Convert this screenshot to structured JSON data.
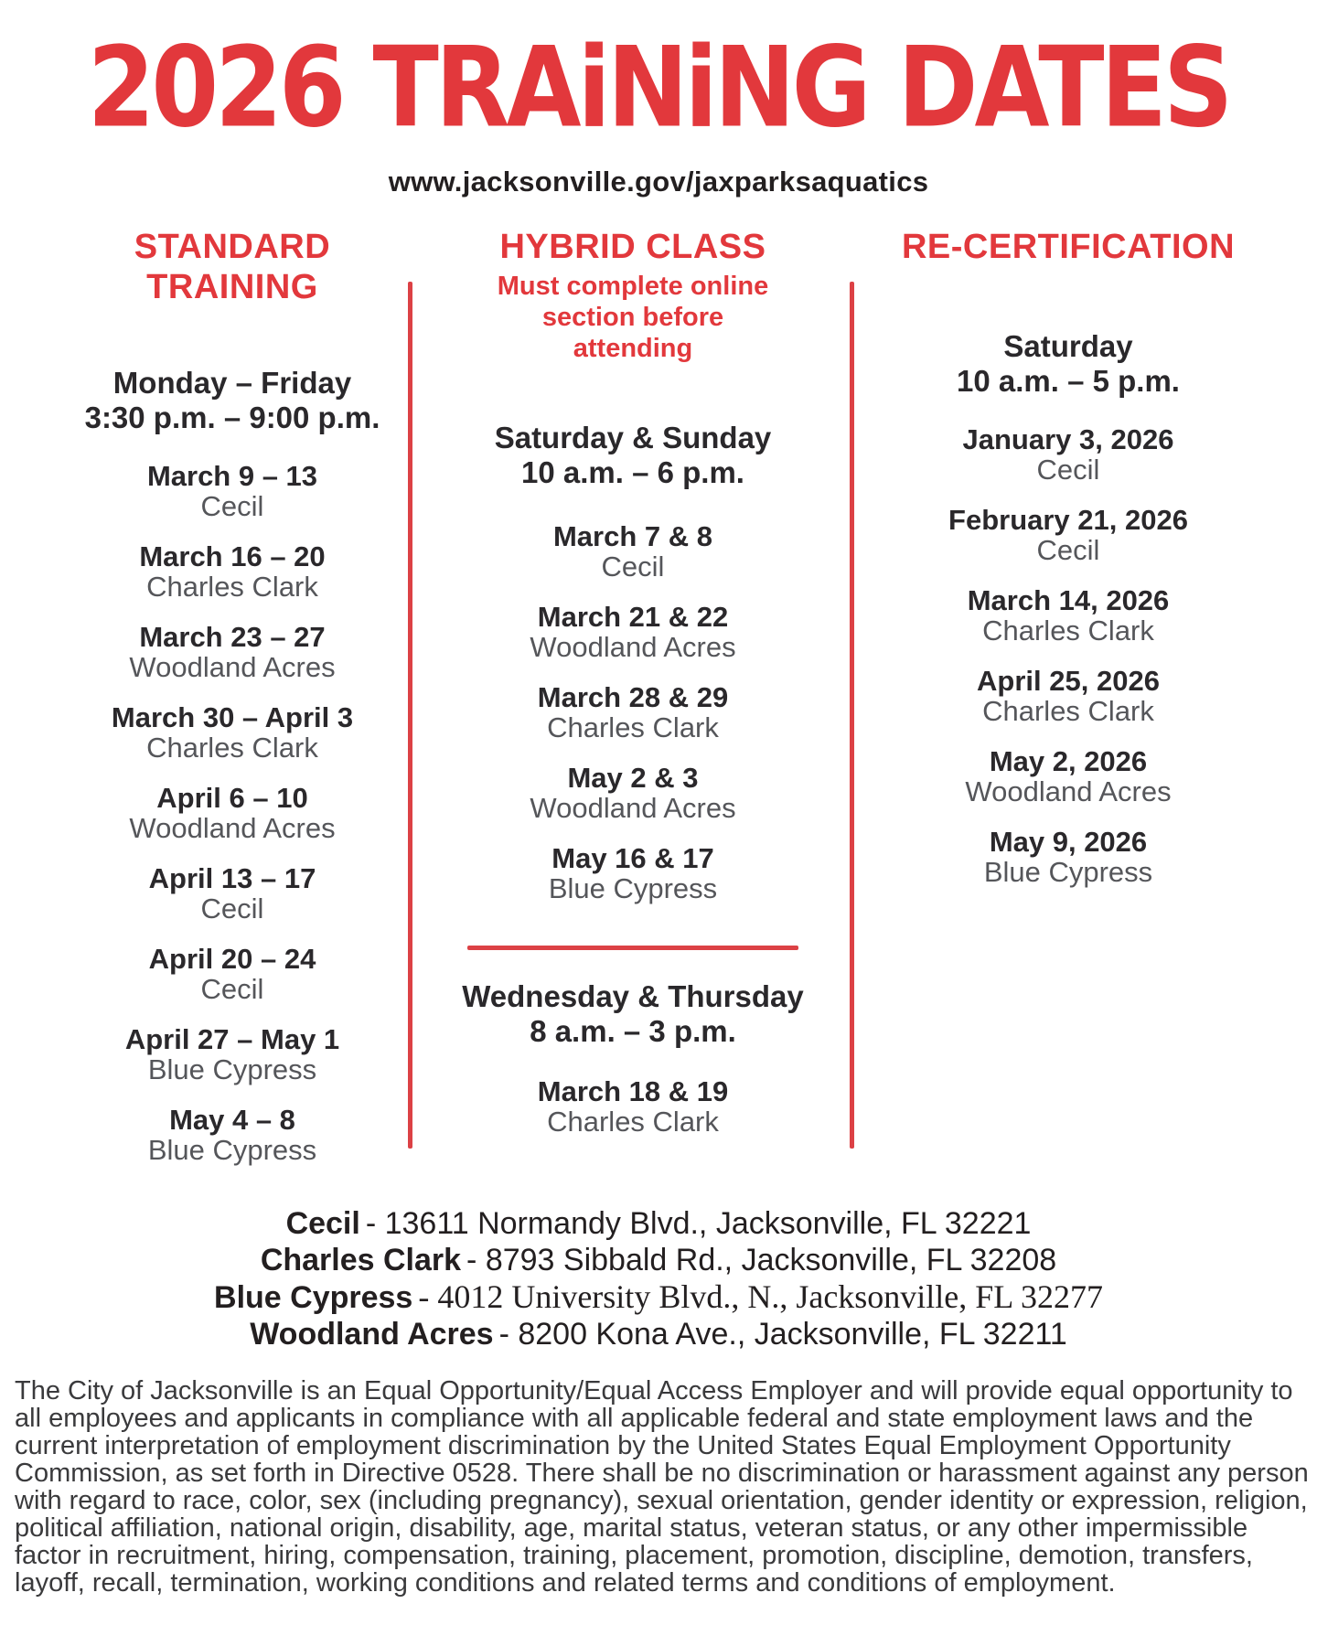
{
  "page": {
    "title": "2026 TRAiNiNG DATES",
    "url": "www.jacksonville.gov/jaxparksaquatics"
  },
  "accent_color": "#e2383c",
  "columns": {
    "standard": {
      "header": "STANDARD TRAINING",
      "schedule_days": "Monday – Friday",
      "schedule_time": "3:30 p.m. – 9:00 p.m.",
      "entries": [
        {
          "date": "March 9 – 13",
          "location": "Cecil"
        },
        {
          "date": "March 16 – 20",
          "location": "Charles Clark"
        },
        {
          "date": "March 23 – 27",
          "location": "Woodland Acres"
        },
        {
          "date": "March 30 – April 3",
          "location": "Charles Clark"
        },
        {
          "date": "April 6 – 10",
          "location": "Woodland Acres"
        },
        {
          "date": "April 13 – 17",
          "location": "Cecil"
        },
        {
          "date": "April 20 – 24",
          "location": "Cecil"
        },
        {
          "date": "April 27 – May 1",
          "location": "Blue Cypress"
        },
        {
          "date": "May 4 – 8",
          "location": "Blue Cypress"
        }
      ]
    },
    "hybrid": {
      "header": "HYBRID CLASS",
      "note": "Must complete online section before attending",
      "schedule1_days": "Saturday & Sunday",
      "schedule1_time": "10 a.m. – 6 p.m.",
      "entries1": [
        {
          "date": "March 7 & 8",
          "location": "Cecil"
        },
        {
          "date": "March 21 & 22",
          "location": "Woodland Acres"
        },
        {
          "date": "March 28 & 29",
          "location": "Charles Clark"
        },
        {
          "date": "May 2 & 3",
          "location": "Woodland Acres"
        },
        {
          "date": "May 16 & 17",
          "location": "Blue Cypress"
        }
      ],
      "schedule2_days": "Wednesday & Thursday",
      "schedule2_time": "8 a.m. – 3 p.m.",
      "entries2": [
        {
          "date": "March 18 & 19",
          "location": "Charles Clark"
        }
      ]
    },
    "recert": {
      "header": "RE-CERTIFICATION",
      "schedule_days": "Saturday",
      "schedule_time": "10 a.m. – 5 p.m.",
      "entries": [
        {
          "date": "January 3, 2026",
          "location": "Cecil"
        },
        {
          "date": "February 21, 2026",
          "location": "Cecil"
        },
        {
          "date": "March 14, 2026",
          "location": "Charles Clark"
        },
        {
          "date": "April 25, 2026",
          "location": "Charles Clark"
        },
        {
          "date": "May 2, 2026",
          "location": "Woodland Acres"
        },
        {
          "date": "May 9, 2026",
          "location": "Blue Cypress"
        }
      ]
    }
  },
  "locations": [
    {
      "name": "Cecil",
      "address": "- 13611 Normandy Blvd., Jacksonville, FL 32221"
    },
    {
      "name": "Charles Clark",
      "address": "- 8793 Sibbald Rd., Jacksonville, FL 32208"
    },
    {
      "name": "Blue Cypress",
      "address": "- 4012 University Blvd., N., Jacksonville, FL 32277"
    },
    {
      "name": "Woodland Acres",
      "address": "- 8200 Kona Ave., Jacksonville, FL 32211"
    }
  ],
  "footer": {
    "text": "The City of Jacksonville is an Equal Opportunity/Equal Access Employer and will provide equal opportunity to all employees and applicants in compliance with all applicable federal and state employment laws and the current interpretation of employment discrimination by the United States Equal Employment Opportunity Commission, as set forth in Directive 0528.  There shall be no discrimination or harassment against any person with regard to race, color, sex (including pregnancy), sexual orientation, gender identity or expression, religion, political affiliation, national origin, disability, age, marital status, veteran status, or any other impermissible factor in recruitment, hiring, compensation, training, placement, promotion, discipline, demotion, transfers, layoff, recall, termination, working conditions and related terms and conditions of employment."
  }
}
